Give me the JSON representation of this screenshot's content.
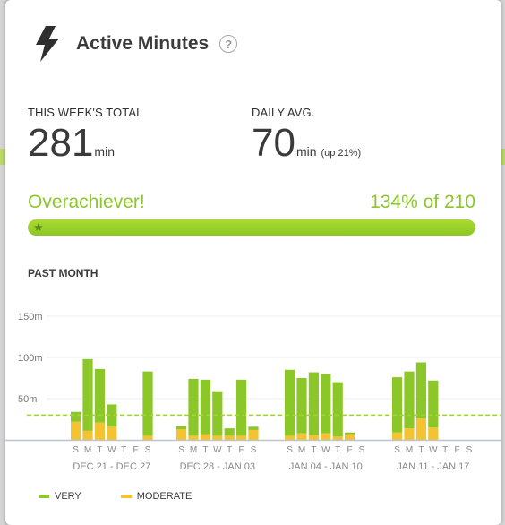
{
  "header": {
    "title": "Active Minutes",
    "help": "?",
    "icon": "lightning-bolt-icon"
  },
  "stats": {
    "week_total": {
      "label": "THIS WEEK'S TOTAL",
      "value": "281",
      "unit": "min"
    },
    "daily_avg": {
      "label": "DAILY AVG.",
      "value": "70",
      "unit": "min",
      "change": "(up 21%)"
    }
  },
  "goal": {
    "status": "Overachiever!",
    "summary": "134% of 210",
    "percent": 100
  },
  "section_title": "PAST MONTH",
  "colors": {
    "very": "#8cc72a",
    "moderate": "#f5c232",
    "goal_line": "#9dd43a"
  },
  "chart_data": {
    "type": "bar",
    "stacked": true,
    "ylim": [
      0,
      150
    ],
    "y_ticks": [
      "150m",
      "100m",
      "50m"
    ],
    "goal_value": 30,
    "days": [
      "S",
      "M",
      "T",
      "W",
      "T",
      "F",
      "S",
      "S",
      "M",
      "T",
      "W",
      "T",
      "F",
      "S",
      "S",
      "M",
      "T",
      "W",
      "T",
      "F",
      "S",
      "S",
      "M",
      "T",
      "W",
      "T",
      "F",
      "S"
    ],
    "week_labels": [
      "DEC 21 - DEC 27",
      "DEC 28 - JAN 03",
      "JAN 04 - JAN 10",
      "JAN 11 - JAN 17"
    ],
    "series": [
      {
        "name": "VERY",
        "values": [
          12,
          87,
          65,
          27,
          0,
          78,
          4,
          69,
          66,
          54,
          9,
          68,
          4,
          80,
          67,
          76,
          72,
          66,
          2,
          0,
          67,
          69,
          68,
          57,
          0,
          0
        ]
      },
      {
        "name": "MODERATE",
        "values": [
          22,
          11,
          21,
          16,
          0,
          5,
          13,
          5,
          7,
          5,
          5,
          5,
          12,
          5,
          8,
          6,
          8,
          4,
          7,
          0,
          9,
          14,
          26,
          15,
          0,
          0
        ]
      }
    ]
  },
  "legend": [
    {
      "label": "VERY",
      "color": "#8cc72a"
    },
    {
      "label": "MODERATE",
      "color": "#f5c232"
    }
  ]
}
